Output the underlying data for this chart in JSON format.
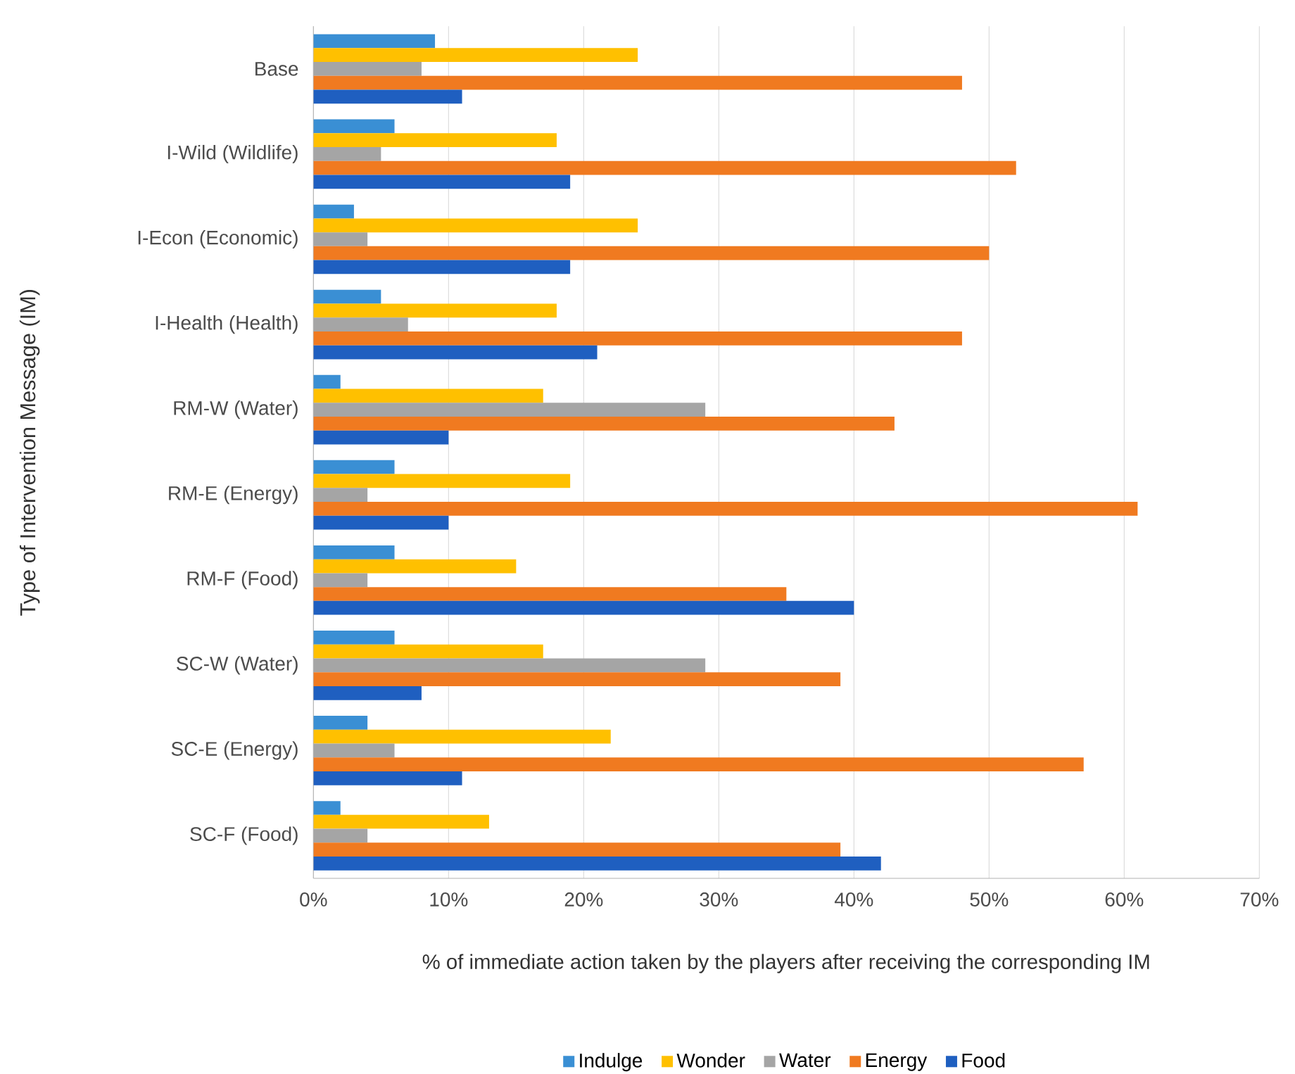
{
  "chart_data": {
    "type": "bar",
    "orientation": "horizontal",
    "xlabel": "% of immediate action taken by the players after receiving the corresponding IM",
    "ylabel": "Type  of Intervention Message (IM)",
    "categories": [
      "Base",
      "I-Wild (Wildlife)",
      "I-Econ (Economic)",
      "I-Health (Health)",
      "RM-W (Water)",
      "RM-E (Energy)",
      "RM-F (Food)",
      "SC-W (Water)",
      "SC-E (Energy)",
      "SC-F (Food)"
    ],
    "series": [
      {
        "name": "Indulge",
        "color": "#3a8fd4",
        "values": [
          9,
          6,
          3,
          5,
          2,
          6,
          6,
          6,
          4,
          2
        ]
      },
      {
        "name": "Wonder",
        "color": "#ffc000",
        "values": [
          24,
          18,
          24,
          18,
          17,
          19,
          15,
          17,
          22,
          13
        ]
      },
      {
        "name": "Water",
        "color": "#a5a5a5",
        "values": [
          8,
          5,
          4,
          7,
          29,
          4,
          4,
          29,
          6,
          4
        ]
      },
      {
        "name": "Energy",
        "color": "#f07a20",
        "values": [
          48,
          52,
          50,
          48,
          43,
          61,
          35,
          39,
          57,
          39
        ]
      },
      {
        "name": "Food",
        "color": "#1f5fc0",
        "values": [
          11,
          19,
          19,
          21,
          10,
          10,
          40,
          8,
          11,
          42
        ]
      }
    ],
    "xlim": [
      0,
      70
    ],
    "xticks": [
      {
        "value": 0,
        "label": "0%"
      },
      {
        "value": 10,
        "label": "10%"
      },
      {
        "value": 20,
        "label": "20%"
      },
      {
        "value": 30,
        "label": "30%"
      },
      {
        "value": 40,
        "label": "40%"
      },
      {
        "value": 50,
        "label": "50%"
      },
      {
        "value": 60,
        "label": "60%"
      },
      {
        "value": 70,
        "label": "70%"
      }
    ],
    "grid": "x",
    "legend": "bottom"
  }
}
